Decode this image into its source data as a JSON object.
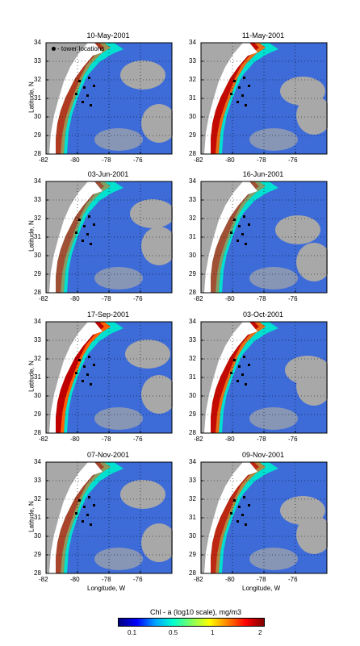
{
  "panels": [
    {
      "date": "10-May-2001",
      "show_legend": true
    },
    {
      "date": "11-May-2001"
    },
    {
      "date": "03-Jun-2001"
    },
    {
      "date": "16-Jun-2001"
    },
    {
      "date": "17-Sep-2001"
    },
    {
      "date": "03-Oct-2001"
    },
    {
      "date": "07-Nov-2001"
    },
    {
      "date": "09-Nov-2001"
    }
  ],
  "axes": {
    "x_ticks": [
      "-82",
      "-80",
      "-78",
      "-76"
    ],
    "y_ticks": [
      "34",
      "33",
      "32",
      "31",
      "30",
      "29",
      "28"
    ],
    "xlabel": "Longitude, W",
    "ylabel": "Latitude, N"
  },
  "legend": {
    "label": "- tower locations"
  },
  "colorbar": {
    "title": "Chl - a (log10 scale), mg/m3",
    "ticks": [
      "0.1",
      "0.5",
      "1",
      "2"
    ],
    "colors": [
      "#000080",
      "#0000ff",
      "#00a0ff",
      "#00ffd0",
      "#80ff60",
      "#ffff00",
      "#ff8000",
      "#ff0000",
      "#800000"
    ]
  },
  "colors": {
    "land": "#ffffff",
    "nodata": "#a8a8a8",
    "ocean": "#2a60e0"
  }
}
